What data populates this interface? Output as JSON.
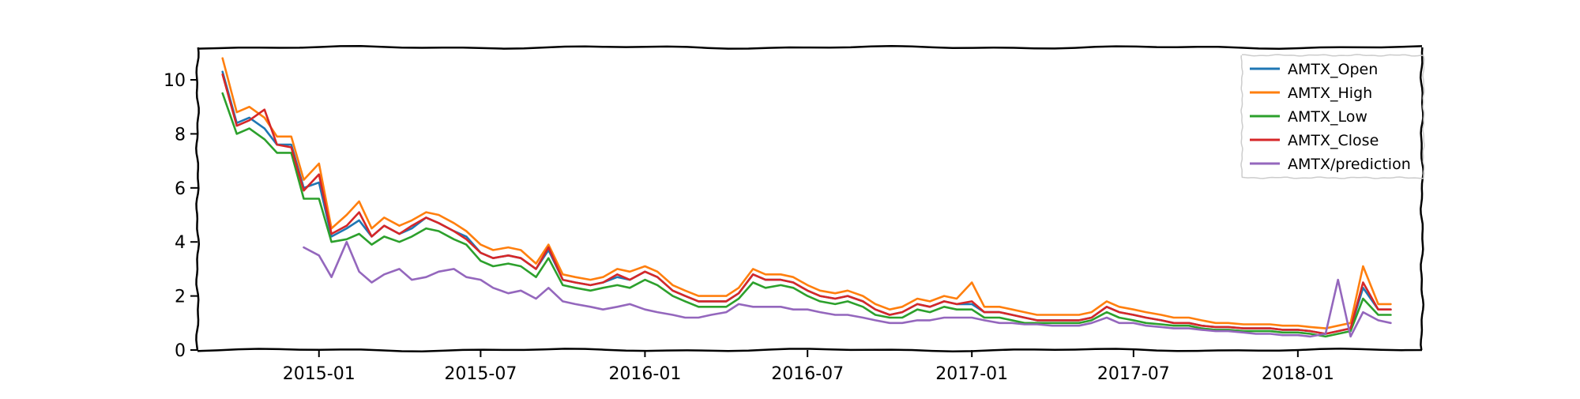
{
  "chart_data": {
    "type": "line",
    "title": "",
    "xlabel": "",
    "ylabel": "",
    "x_ticks": [
      "2015-01",
      "2015-07",
      "2016-01",
      "2016-07",
      "2017-01",
      "2017-07",
      "2018-01"
    ],
    "y_ticks": [
      "0",
      "2",
      "4",
      "6",
      "8",
      "10"
    ],
    "xlim": [
      "2014-08-18",
      "2018-05-20"
    ],
    "ylim": [
      0,
      11.2
    ],
    "grid": false,
    "legend_position": "top-right",
    "x": [
      "2014-09-15",
      "2014-10-01",
      "2014-10-15",
      "2014-11-01",
      "2014-11-15",
      "2014-12-01",
      "2014-12-15",
      "2015-01-01",
      "2015-01-15",
      "2015-02-01",
      "2015-02-15",
      "2015-03-01",
      "2015-03-15",
      "2015-04-01",
      "2015-04-15",
      "2015-05-01",
      "2015-05-15",
      "2015-06-01",
      "2015-06-15",
      "2015-07-01",
      "2015-07-15",
      "2015-08-01",
      "2015-08-15",
      "2015-09-01",
      "2015-09-15",
      "2015-10-01",
      "2015-10-15",
      "2015-11-01",
      "2015-11-15",
      "2015-12-01",
      "2015-12-15",
      "2016-01-01",
      "2016-01-15",
      "2016-02-01",
      "2016-02-15",
      "2016-03-01",
      "2016-03-15",
      "2016-04-01",
      "2016-04-15",
      "2016-05-01",
      "2016-05-15",
      "2016-06-01",
      "2016-06-15",
      "2016-07-01",
      "2016-07-15",
      "2016-08-01",
      "2016-08-15",
      "2016-09-01",
      "2016-09-15",
      "2016-10-01",
      "2016-10-15",
      "2016-11-01",
      "2016-11-15",
      "2016-12-01",
      "2016-12-15",
      "2017-01-01",
      "2017-01-15",
      "2017-02-01",
      "2017-02-15",
      "2017-03-01",
      "2017-03-15",
      "2017-04-01",
      "2017-04-15",
      "2017-05-01",
      "2017-05-15",
      "2017-06-01",
      "2017-06-15",
      "2017-07-01",
      "2017-07-15",
      "2017-08-01",
      "2017-08-15",
      "2017-09-01",
      "2017-09-15",
      "2017-10-01",
      "2017-10-15",
      "2017-11-01",
      "2017-11-15",
      "2017-12-01",
      "2017-12-15",
      "2018-01-01",
      "2018-01-15",
      "2018-02-01",
      "2018-02-15",
      "2018-03-01",
      "2018-03-15",
      "2018-04-01",
      "2018-04-15"
    ],
    "series": [
      {
        "name": "AMTX_Open",
        "color": "#1f77b4",
        "values": [
          10.3,
          8.4,
          8.6,
          8.2,
          7.6,
          7.6,
          6.0,
          6.2,
          4.2,
          4.5,
          4.8,
          4.2,
          4.6,
          4.3,
          4.5,
          4.9,
          4.7,
          4.4,
          4.2,
          3.6,
          3.4,
          3.5,
          3.4,
          3.0,
          3.7,
          2.6,
          2.5,
          2.4,
          2.5,
          2.7,
          2.6,
          2.9,
          2.7,
          2.2,
          2.0,
          1.8,
          1.8,
          1.8,
          2.1,
          2.8,
          2.6,
          2.6,
          2.5,
          2.2,
          2.0,
          1.9,
          2.0,
          1.8,
          1.5,
          1.3,
          1.4,
          1.7,
          1.6,
          1.8,
          1.7,
          1.7,
          1.4,
          1.4,
          1.3,
          1.2,
          1.1,
          1.1,
          1.1,
          1.1,
          1.2,
          1.6,
          1.4,
          1.3,
          1.2,
          1.1,
          1.0,
          1.0,
          0.9,
          0.85,
          0.85,
          0.8,
          0.8,
          0.8,
          0.75,
          0.75,
          0.7,
          0.6,
          0.7,
          0.8,
          2.3,
          1.5,
          1.5
        ]
      },
      {
        "name": "AMTX_High",
        "color": "#ff7f0e",
        "values": [
          10.8,
          8.8,
          9.0,
          8.6,
          7.9,
          7.9,
          6.3,
          6.9,
          4.5,
          5.0,
          5.5,
          4.5,
          4.9,
          4.6,
          4.8,
          5.1,
          5.0,
          4.7,
          4.4,
          3.9,
          3.7,
          3.8,
          3.7,
          3.2,
          3.9,
          2.8,
          2.7,
          2.6,
          2.7,
          3.0,
          2.9,
          3.1,
          2.9,
          2.4,
          2.2,
          2.0,
          2.0,
          2.0,
          2.3,
          3.0,
          2.8,
          2.8,
          2.7,
          2.4,
          2.2,
          2.1,
          2.2,
          2.0,
          1.7,
          1.5,
          1.6,
          1.9,
          1.8,
          2.0,
          1.9,
          2.5,
          1.6,
          1.6,
          1.5,
          1.4,
          1.3,
          1.3,
          1.3,
          1.3,
          1.4,
          1.8,
          1.6,
          1.5,
          1.4,
          1.3,
          1.2,
          1.2,
          1.1,
          1.0,
          1.0,
          0.95,
          0.95,
          0.95,
          0.9,
          0.9,
          0.85,
          0.8,
          0.9,
          1.0,
          3.1,
          1.7,
          1.7
        ]
      },
      {
        "name": "AMTX_Low",
        "color": "#2ca02c",
        "values": [
          9.5,
          8.0,
          8.2,
          7.8,
          7.3,
          7.3,
          5.6,
          5.6,
          4.0,
          4.1,
          4.3,
          3.9,
          4.2,
          4.0,
          4.2,
          4.5,
          4.4,
          4.1,
          3.9,
          3.3,
          3.1,
          3.2,
          3.1,
          2.7,
          3.4,
          2.4,
          2.3,
          2.2,
          2.3,
          2.4,
          2.3,
          2.6,
          2.4,
          2.0,
          1.8,
          1.6,
          1.6,
          1.6,
          1.9,
          2.5,
          2.3,
          2.4,
          2.3,
          2.0,
          1.8,
          1.7,
          1.8,
          1.6,
          1.3,
          1.2,
          1.2,
          1.5,
          1.4,
          1.6,
          1.5,
          1.5,
          1.2,
          1.2,
          1.1,
          1.0,
          1.0,
          1.0,
          1.0,
          1.0,
          1.1,
          1.4,
          1.2,
          1.1,
          1.0,
          0.95,
          0.9,
          0.9,
          0.8,
          0.75,
          0.75,
          0.7,
          0.7,
          0.7,
          0.65,
          0.65,
          0.6,
          0.5,
          0.6,
          0.7,
          1.9,
          1.3,
          1.3
        ]
      },
      {
        "name": "AMTX_Close",
        "color": "#d62728",
        "values": [
          10.2,
          8.3,
          8.5,
          8.9,
          7.6,
          7.5,
          5.9,
          6.5,
          4.3,
          4.6,
          5.1,
          4.2,
          4.6,
          4.3,
          4.6,
          4.9,
          4.7,
          4.4,
          4.1,
          3.6,
          3.4,
          3.5,
          3.4,
          3.0,
          3.8,
          2.6,
          2.5,
          2.4,
          2.5,
          2.8,
          2.6,
          2.9,
          2.7,
          2.2,
          2.0,
          1.8,
          1.8,
          1.8,
          2.1,
          2.8,
          2.6,
          2.6,
          2.5,
          2.2,
          2.0,
          1.9,
          2.0,
          1.8,
          1.5,
          1.3,
          1.4,
          1.7,
          1.6,
          1.8,
          1.7,
          1.8,
          1.4,
          1.4,
          1.3,
          1.2,
          1.1,
          1.1,
          1.1,
          1.1,
          1.2,
          1.6,
          1.4,
          1.3,
          1.2,
          1.1,
          1.0,
          1.0,
          0.9,
          0.85,
          0.85,
          0.8,
          0.8,
          0.8,
          0.75,
          0.75,
          0.7,
          0.6,
          0.7,
          0.8,
          2.5,
          1.5,
          1.5
        ]
      },
      {
        "name": "AMTX/prediction",
        "color": "#9467bd",
        "values": [
          null,
          null,
          null,
          null,
          null,
          null,
          3.8,
          3.5,
          2.7,
          4.0,
          2.9,
          2.5,
          2.8,
          3.0,
          2.6,
          2.7,
          2.9,
          3.0,
          2.7,
          2.6,
          2.3,
          2.1,
          2.2,
          1.9,
          2.3,
          1.8,
          1.7,
          1.6,
          1.5,
          1.6,
          1.7,
          1.5,
          1.4,
          1.3,
          1.2,
          1.2,
          1.3,
          1.4,
          1.7,
          1.6,
          1.6,
          1.6,
          1.5,
          1.5,
          1.4,
          1.3,
          1.3,
          1.2,
          1.1,
          1.0,
          1.0,
          1.1,
          1.1,
          1.2,
          1.2,
          1.2,
          1.1,
          1.0,
          1.0,
          0.95,
          0.95,
          0.9,
          0.9,
          0.9,
          1.0,
          1.2,
          1.0,
          1.0,
          0.9,
          0.85,
          0.8,
          0.8,
          0.75,
          0.7,
          0.7,
          0.65,
          0.6,
          0.6,
          0.55,
          0.55,
          0.5,
          0.6,
          2.6,
          0.5,
          1.4,
          1.1,
          1.0
        ]
      }
    ]
  }
}
